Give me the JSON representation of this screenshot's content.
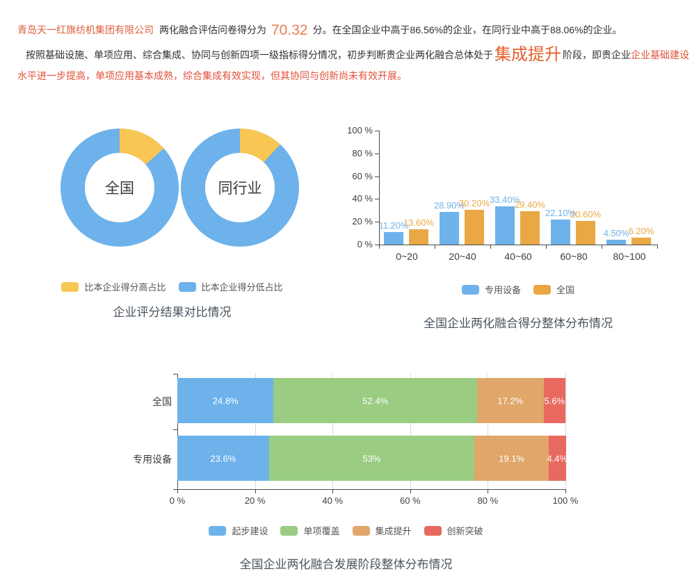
{
  "report": {
    "company_name": "青岛天一红旗纺机集团有限公司",
    "score_prefix": "两化融合评估问卷得分为",
    "score": "70.32",
    "score_suffix": "分。在全国企业中高于86.56%的企业，在同行业中高于88.06%的企业。",
    "analysis_prefix": "按照基础设施、单项应用、综合集成、协同与创新四项一级指标得分情况，初步判断贵企业两化融合总体处于",
    "stage": "集成提升",
    "analysis_mid": "阶段，即贵企业",
    "analysis_red_line1": "企业基础建设",
    "analysis_red_line2": "水平进一步提高，单项应用基本成熟，综合集成有效实现，但其协同与创新尚未有效开展。"
  },
  "colors": {
    "blue": "#6db2ea",
    "donut_yellow": "#f8c653",
    "bar_orange": "#e9a843",
    "green": "#9acc82",
    "tan": "#e0a66a",
    "red": "#e8695f",
    "company_red": "#dc5f3f",
    "score_orange": "#e87e52",
    "stage_orange": "#e45f2d",
    "alert_red": "#e25038",
    "title_gray": "#49545e"
  },
  "chart_data": [
    {
      "type": "pie",
      "subtype": "donut-pair",
      "title": "企业评分结果对比情况",
      "legend": [
        {
          "label": "比本企业得分高占比",
          "color": "#f8c653"
        },
        {
          "label": "比本企业得分低占比",
          "color": "#6db2ea"
        }
      ],
      "donuts": [
        {
          "label": "全国",
          "slices": [
            {
              "name": "比本企业得分高占比",
              "value": 13.44,
              "color": "#f8c653"
            },
            {
              "name": "比本企业得分低占比",
              "value": 86.56,
              "color": "#6db2ea"
            }
          ]
        },
        {
          "label": "同行业",
          "slices": [
            {
              "name": "比本企业得分高占比",
              "value": 11.94,
              "color": "#f8c653"
            },
            {
              "name": "比本企业得分低占比",
              "value": 88.06,
              "color": "#6db2ea"
            }
          ]
        }
      ]
    },
    {
      "type": "bar",
      "title": "全国企业两化融合得分整体分布情况",
      "categories": [
        "0~20",
        "20~40",
        "40~60",
        "60~80",
        "80~100"
      ],
      "series": [
        {
          "name": "专用设备",
          "color": "#6db2ea",
          "values": [
            11.2,
            28.9,
            33.4,
            22.1,
            4.5
          ],
          "labels": [
            "11.20%",
            "28.90%",
            "33.40%",
            "22.10%",
            "4.50%"
          ]
        },
        {
          "name": "全国",
          "color": "#e9a843",
          "values": [
            13.6,
            30.2,
            29.4,
            20.6,
            6.2
          ],
          "labels": [
            "13.60%",
            "30.20%",
            "29.40%",
            "20.60%",
            "6.20%"
          ]
        }
      ],
      "legend": [
        {
          "label": "专用设备",
          "color": "#6db2ea"
        },
        {
          "label": "全国",
          "color": "#e9a843"
        }
      ],
      "y_ticks": [
        "0 %",
        "20 %",
        "40 %",
        "60 %",
        "80 %",
        "100 %"
      ],
      "ylim": [
        0,
        100
      ],
      "grid": false,
      "legend_position": "bottom"
    },
    {
      "type": "bar",
      "subtype": "stacked-horizontal",
      "title": "全国企业两化融合发展阶段整体分布情况",
      "categories": [
        "全国",
        "专用设备"
      ],
      "series": [
        {
          "name": "起步建设",
          "color": "#6db2ea",
          "values": [
            24.8,
            23.6
          ]
        },
        {
          "name": "单项覆盖",
          "color": "#9acc82",
          "values": [
            52.4,
            53
          ]
        },
        {
          "name": "集成提升",
          "color": "#e0a66a",
          "values": [
            17.2,
            19.1
          ]
        },
        {
          "name": "创新突破",
          "color": "#e8695f",
          "values": [
            5.6,
            4.4
          ]
        }
      ],
      "labels": [
        [
          "24.8%",
          "52.4%",
          "17.2%",
          "5.6%"
        ],
        [
          "23.6%",
          "53%",
          "19.1%",
          "4.4%"
        ]
      ],
      "legend": [
        {
          "label": "起步建设",
          "color": "#6db2ea"
        },
        {
          "label": "单项覆盖",
          "color": "#9acc82"
        },
        {
          "label": "集成提升",
          "color": "#e0a66a"
        },
        {
          "label": "创新突破",
          "color": "#e8695f"
        }
      ],
      "x_ticks": [
        "0 %",
        "20 %",
        "40 %",
        "60 %",
        "80 %",
        "100 %"
      ],
      "xlim": [
        0,
        100
      ],
      "grid": true,
      "legend_position": "bottom"
    }
  ]
}
